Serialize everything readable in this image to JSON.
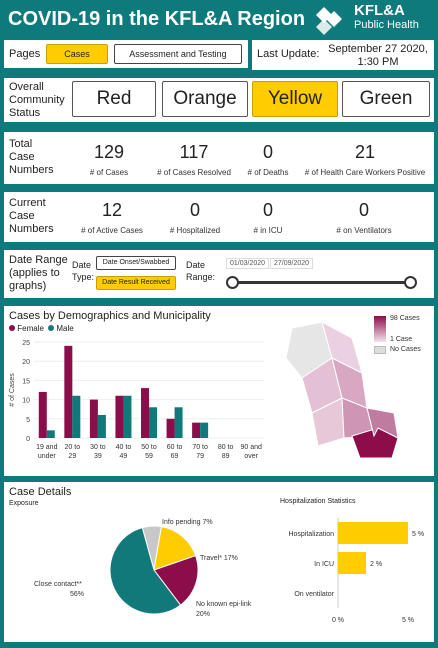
{
  "header": {
    "title": "COVID-19 in the KFL&A Region",
    "logo_line1": "KFL&A",
    "logo_line2": "Public Health"
  },
  "pages": {
    "label": "Pages",
    "tabs": [
      "Cases",
      "Assessment and Testing"
    ],
    "selected": "Cases"
  },
  "last_update": {
    "label": "Last Update:",
    "value_line1": "September 27 2020,",
    "value_line2": "1:30 PM"
  },
  "status": {
    "label_line1": "Overall",
    "label_line2": "Community",
    "label_line3": "Status",
    "options": [
      "Red",
      "Orange",
      "Yellow",
      "Green"
    ],
    "selected": "Yellow"
  },
  "totals": {
    "label_line1": "Total",
    "label_line2": "Case",
    "label_line3": "Numbers",
    "items": [
      {
        "value": "129",
        "label": "# of Cases"
      },
      {
        "value": "117",
        "label": "# of Cases Resolved"
      },
      {
        "value": "0",
        "label": "# of Deaths"
      },
      {
        "value": "21",
        "label": "# of Health Care Workers Positive"
      }
    ]
  },
  "current": {
    "label_line1": "Current",
    "label_line2": "Case",
    "label_line3": "Numbers",
    "items": [
      {
        "value": "12",
        "label": "# of Active Cases"
      },
      {
        "value": "0",
        "label": "# Hospitalized"
      },
      {
        "value": "0",
        "label": "# in ICU"
      },
      {
        "value": "0",
        "label": "# on Ventilators"
      }
    ]
  },
  "date_range": {
    "label_line1": "Date Range",
    "label_line2": "(applies to",
    "label_line3": "graphs)",
    "type_label_line1": "Date",
    "type_label_line2": "Type:",
    "type_options": [
      "Date Onset/Swabbed",
      "Date Result Received"
    ],
    "type_selected": "Date Result Received",
    "range_label_line1": "Date",
    "range_label_line2": "Range:",
    "start": "01/03/2020",
    "end": "27/09/2020"
  },
  "demographics": {
    "title": "Cases by Demographics and Municipality",
    "legend": [
      "Female",
      "Male"
    ],
    "colors": {
      "female": "#8b0e4a",
      "male": "#12797b"
    },
    "map_legend": {
      "max": "98 Cases",
      "min": "1 Case",
      "none": "No Cases"
    }
  },
  "case_details": {
    "title": "Case Details",
    "subtitle": "Exposure"
  },
  "hosp": {
    "title": "Hospitalization Statistics"
  },
  "chart_data": [
    {
      "type": "bar",
      "title": "",
      "ylabel": "# of Cases",
      "categories": [
        [
          "19 and",
          "under"
        ],
        [
          "20 to",
          "29"
        ],
        [
          "30 to",
          "39"
        ],
        [
          "40 to",
          "49"
        ],
        [
          "50 to",
          "59"
        ],
        [
          "60 to",
          "69"
        ],
        [
          "70 to",
          "79"
        ],
        [
          "80 to",
          "89"
        ],
        [
          "90 and",
          "over"
        ]
      ],
      "series": [
        {
          "name": "Female",
          "values": [
            12,
            24,
            10,
            11,
            13,
            5,
            4,
            0,
            0
          ]
        },
        {
          "name": "Male",
          "values": [
            2,
            11,
            6,
            11,
            8,
            8,
            4,
            0,
            0
          ]
        }
      ],
      "yticks": [
        0,
        5,
        10,
        15,
        20,
        25
      ],
      "ylim": [
        0,
        25
      ]
    },
    {
      "type": "pie",
      "title": "",
      "slices": [
        {
          "label": "Close contact**",
          "value": 56,
          "pct_label": "56%",
          "color": "#12797b"
        },
        {
          "label": "No known epi-link",
          "value": 20,
          "pct_label": "20%",
          "color": "#8b0e4a"
        },
        {
          "label": "Travel*",
          "value": 17,
          "pct_label": "17%",
          "color": "#ffcc00"
        },
        {
          "label": "Info pending",
          "value": 7,
          "pct_label": "7%",
          "color": "#c8c8c8"
        }
      ]
    },
    {
      "type": "bar",
      "orientation": "horizontal",
      "title": "",
      "categories": [
        "Hospitalization",
        "In ICU",
        "On ventilator"
      ],
      "values": [
        5,
        2,
        0
      ],
      "value_labels": [
        "5 %",
        "2 %",
        ""
      ],
      "xticks": [
        "0 %",
        "5 %"
      ],
      "xlim": [
        0,
        5
      ]
    }
  ]
}
